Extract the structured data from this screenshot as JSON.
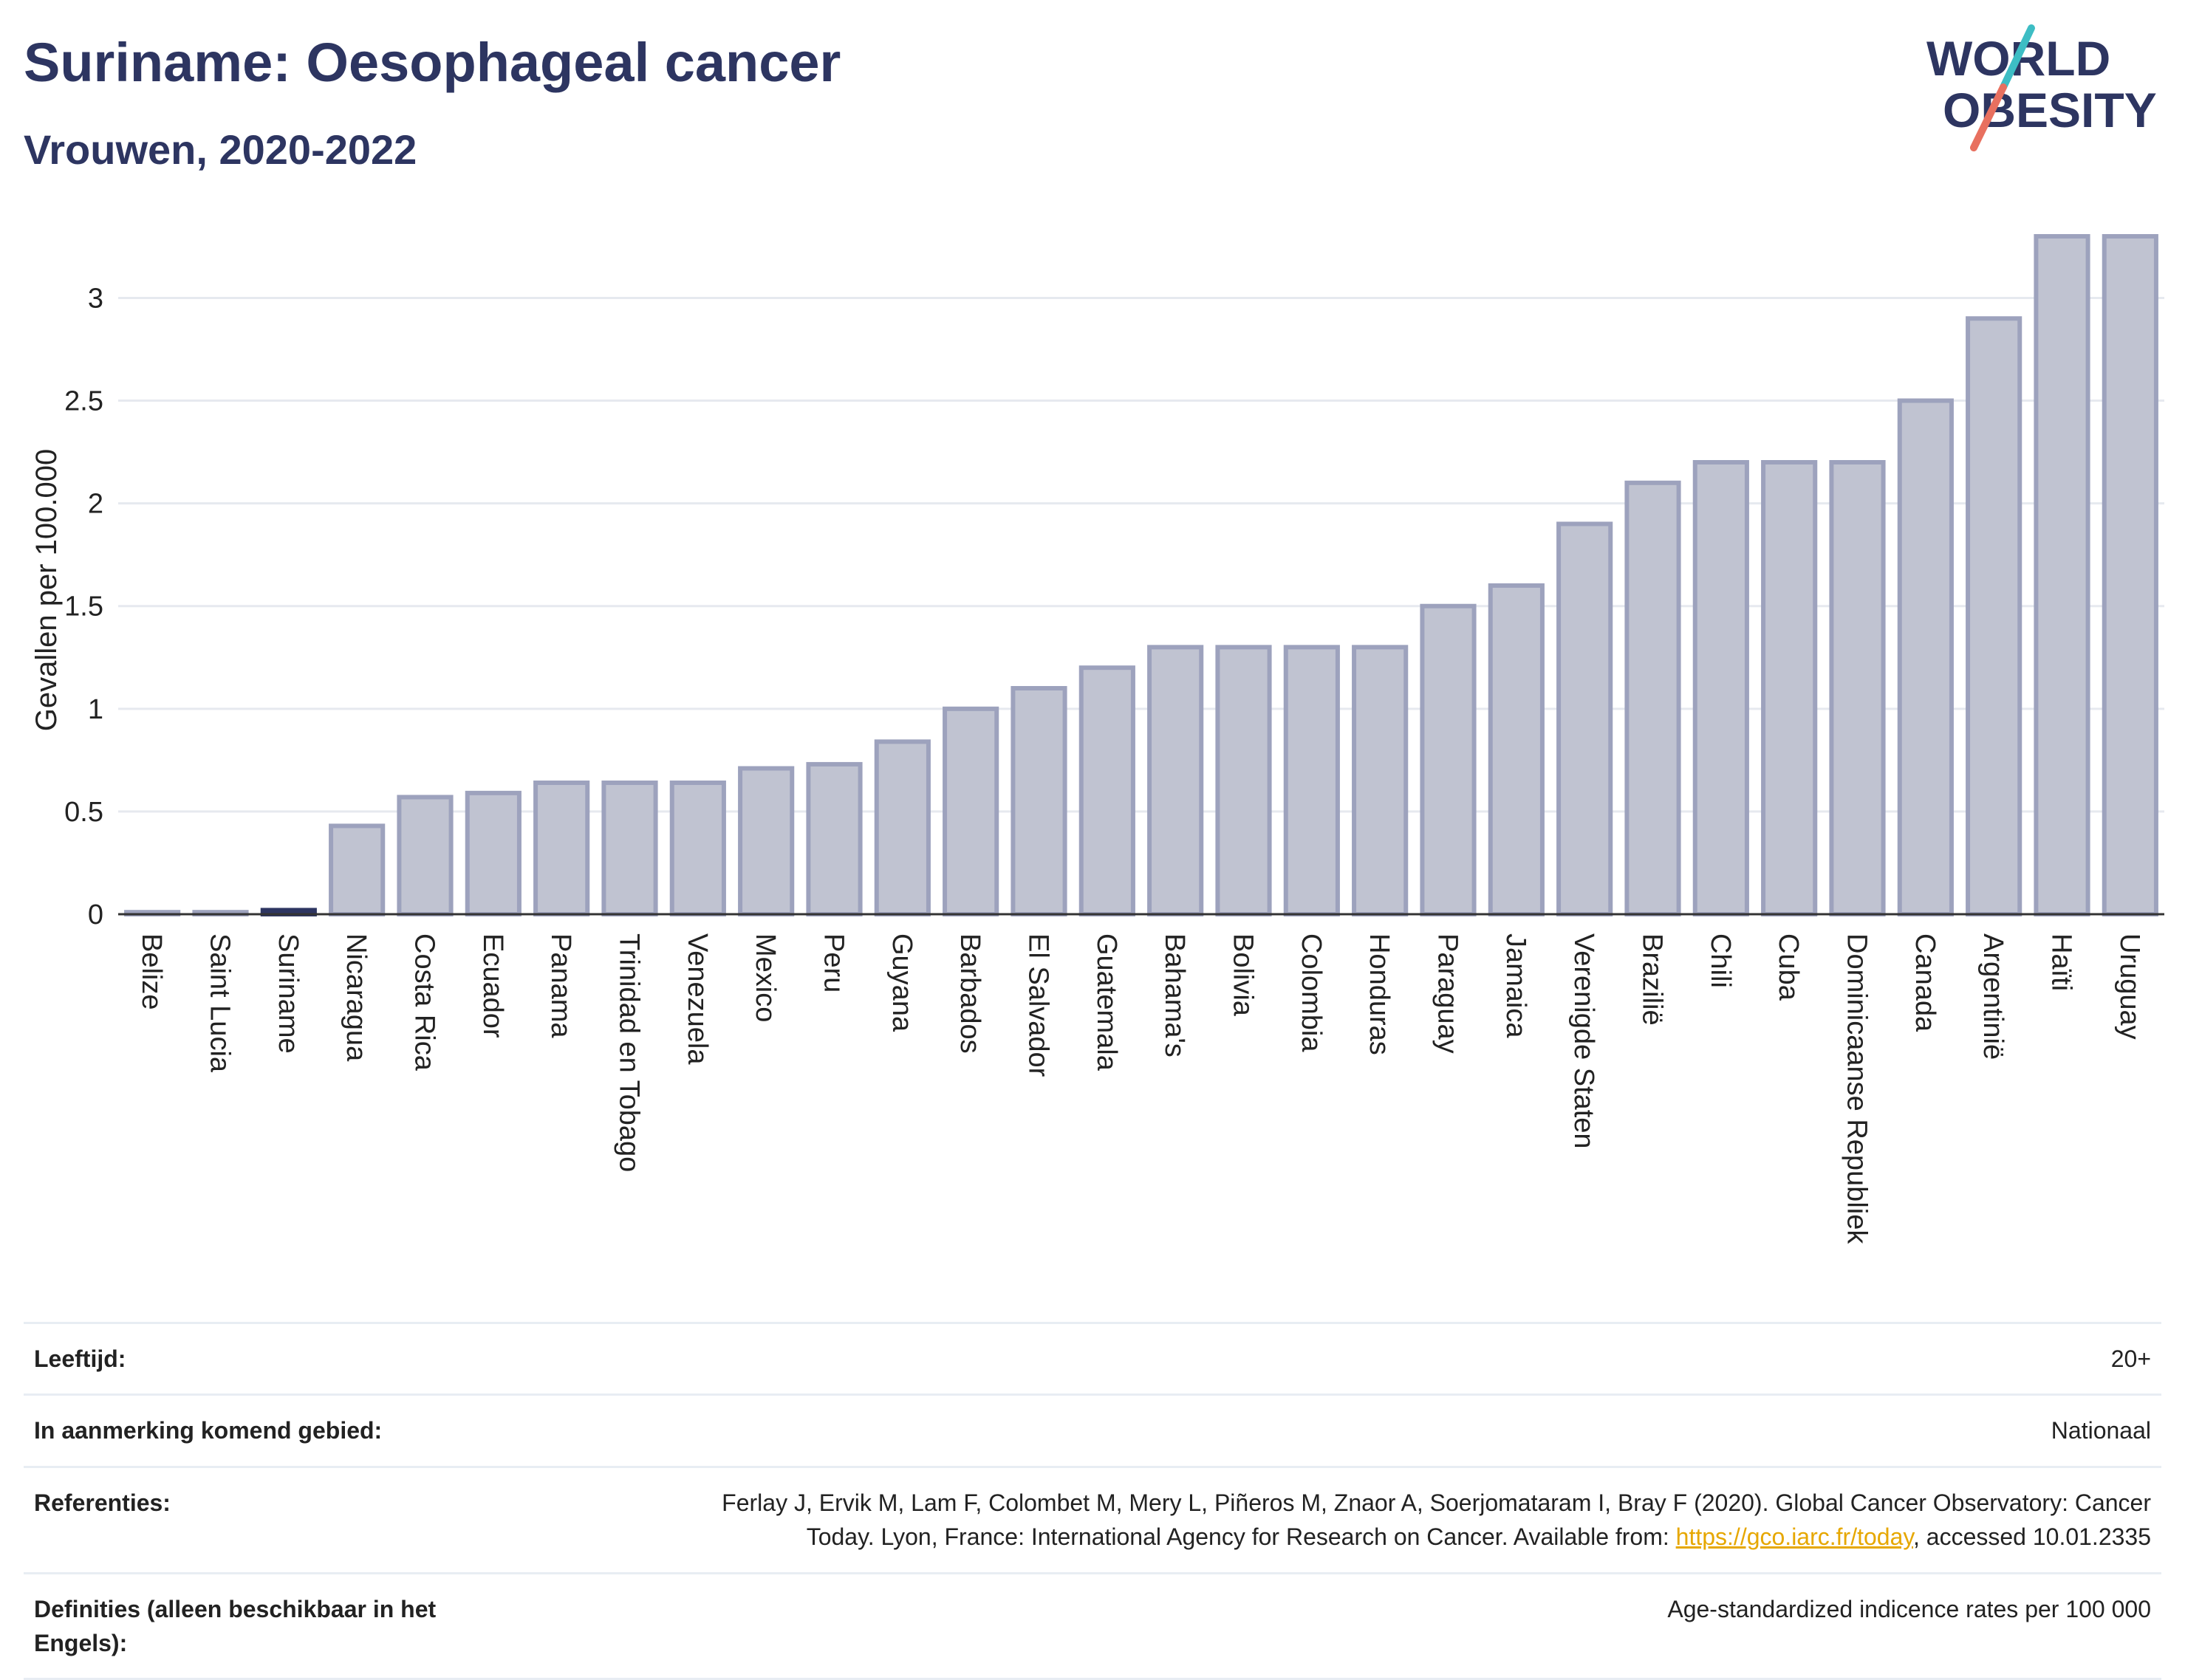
{
  "header": {
    "title": "Suriname: Oesophageal cancer",
    "subtitle": "Vrouwen, 2020-2022"
  },
  "logo": {
    "line1": "WORLD",
    "line2": "OBESITY",
    "colors": {
      "text": "#2d3561",
      "slash_teal": "#3dbdc4",
      "slash_red": "#e8705f"
    }
  },
  "chart_data": {
    "type": "bar",
    "ylabel": "Gevallen per 100.000",
    "xlabel": "",
    "ylim": [
      0,
      3.3
    ],
    "yticks": [
      0,
      0.5,
      1,
      1.5,
      2,
      2.5,
      3
    ],
    "grid": true,
    "highlight": "Suriname",
    "colors": {
      "bar_fill": "#c0c3d1",
      "bar_stroke": "#9da2bd",
      "highlight_fill": "#2d3561",
      "grid": "#e6e9ef",
      "axis": "#333333"
    },
    "categories": [
      "Belize",
      "Saint Lucia",
      "Suriname",
      "Nicaragua",
      "Costa Rica",
      "Ecuador",
      "Panama",
      "Trinidad en Tobago",
      "Venezuela",
      "Mexico",
      "Peru",
      "Guyana",
      "Barbados",
      "El Salvador",
      "Guatemala",
      "Bahama's",
      "Bolivia",
      "Colombia",
      "Honduras",
      "Paraguay",
      "Jamaica",
      "Verenigde Staten",
      "Brazilië",
      "Chili",
      "Cuba",
      "Dominicaanse Republiek",
      "Canada",
      "Argentinië",
      "Haïti",
      "Uruguay"
    ],
    "values": [
      0.01,
      0.01,
      0.02,
      0.43,
      0.57,
      0.59,
      0.64,
      0.64,
      0.64,
      0.71,
      0.73,
      0.84,
      1.0,
      1.1,
      1.2,
      1.3,
      1.3,
      1.3,
      1.3,
      1.5,
      1.6,
      1.9,
      2.1,
      2.2,
      2.2,
      2.2,
      2.5,
      2.9,
      3.3,
      3.3
    ]
  },
  "info_table": {
    "rows": [
      {
        "label": "Leeftijd:",
        "value": "20+"
      },
      {
        "label": "In aanmerking komend gebied:",
        "value": "Nationaal"
      },
      {
        "label": "Referenties:",
        "value_line1": "Ferlay J, Ervik M, Lam F, Colombet M, Mery L, Piñeros M, Znaor A, Soerjomataram I, Bray F (2020). Global Cancer Observatory: Cancer",
        "value_line2_pre": "Today. Lyon, France: International Agency for Research on Cancer. Available from: ",
        "link": "https://gco.iarc.fr/today",
        "value_line2_post": ", accessed 10.01.2335"
      },
      {
        "label": "Definities (alleen beschikbaar in het Engels):",
        "value": "Age-standardized indicence rates per 100 000"
      }
    ]
  }
}
